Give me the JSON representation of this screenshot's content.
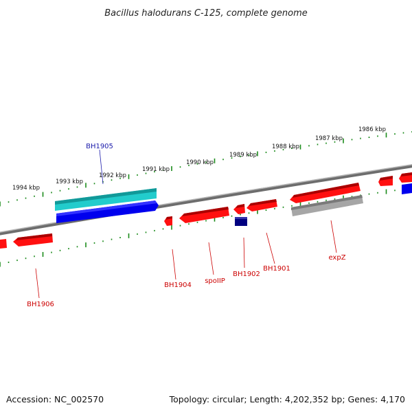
{
  "title": "Bacillus halodurans C-125, complete genome",
  "footer": {
    "accession": "Accession: NC_002570",
    "topology": "Topology: circular; Length: 4,202,352 bp; Genes: 4,170"
  },
  "scale": {
    "labels": [
      "1986 kbp",
      "1987 kbp",
      "1988 kbp",
      "1989 kbp",
      "1990 kbp",
      "1991 kbp",
      "1992 kbp",
      "1993 kbp",
      "1994 kbp"
    ]
  },
  "genes": {
    "labels": [
      "BH1905",
      "BH1904",
      "spoIIP",
      "BH1902",
      "BH1901",
      "expZ",
      "BH1906"
    ]
  },
  "colors": {
    "backbone": "#8a8a8a",
    "tick": "#1a8a1a",
    "cds": "#ff1010",
    "cds_selected": "#0000ee",
    "cds_dark": "#000080",
    "gene_selected": "#22cccc",
    "pseudo": "#a6a6a6",
    "label_red": "#cc0000",
    "label_blue": "#1a1aaa"
  }
}
